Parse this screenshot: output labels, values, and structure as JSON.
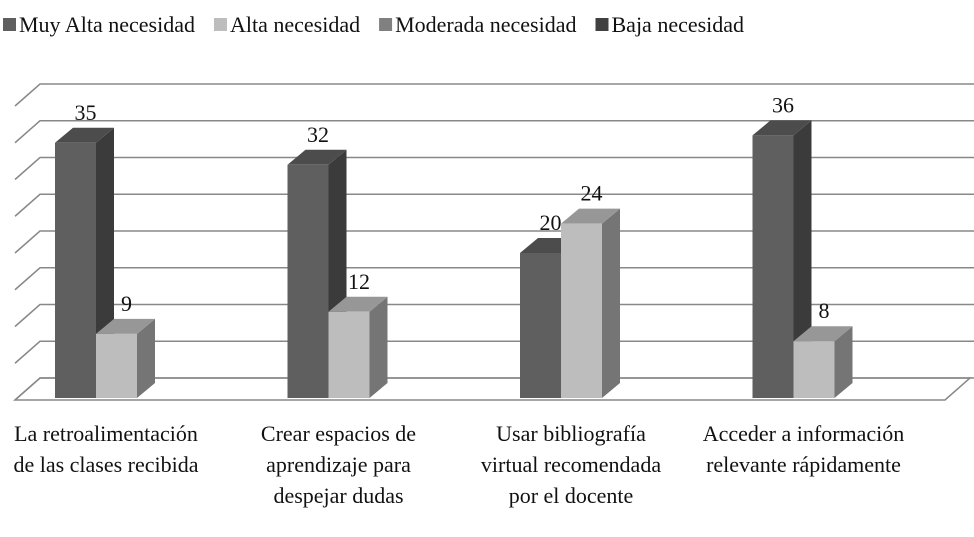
{
  "chart_data": {
    "type": "bar3d",
    "categories": [
      "La retroalimentación de las clases recibida",
      "Crear espacios de aprendizaje para despejar dudas",
      "Usar bibliografía virtual recomendada por el docente",
      "Acceder a información relevante rápidamente"
    ],
    "series": [
      {
        "name": "Muy Alta necesidad",
        "color": "#5f5f5f",
        "values": [
          35,
          32,
          20,
          36
        ]
      },
      {
        "name": "Alta necesidad",
        "color": "#bdbdbd",
        "values": [
          9,
          12,
          24,
          8
        ]
      },
      {
        "name": "Moderada necesidad",
        "color": "#808080",
        "values": [
          null,
          null,
          null,
          null
        ]
      },
      {
        "name": "Baja necesidad",
        "color": "#404040",
        "values": [
          null,
          null,
          null,
          null
        ]
      }
    ],
    "ylim": [
      0,
      40
    ],
    "yticks": [
      0,
      5,
      10,
      15,
      20,
      25,
      30,
      35,
      40
    ],
    "grid": true,
    "legend": "top"
  }
}
